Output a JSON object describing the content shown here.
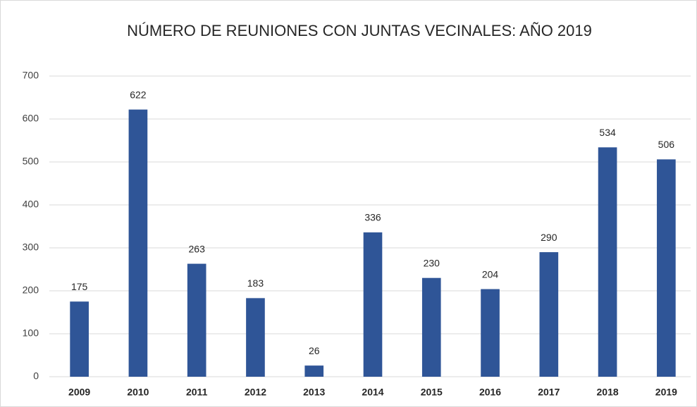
{
  "chart_data": {
    "type": "bar",
    "title": "NÚMERO DE REUNIONES CON JUNTAS VECINALES: AÑO 2019",
    "categories": [
      "2009",
      "2010",
      "2011",
      "2012",
      "2013",
      "2014",
      "2015",
      "2016",
      "2017",
      "2018",
      "2019"
    ],
    "values": [
      175,
      622,
      263,
      183,
      26,
      336,
      230,
      204,
      290,
      534,
      506
    ],
    "color": "#2f5597",
    "ylim": [
      0,
      700
    ],
    "yticks": [
      0,
      100,
      200,
      300,
      400,
      500,
      600,
      700
    ],
    "grid": true,
    "data_labels": true
  }
}
